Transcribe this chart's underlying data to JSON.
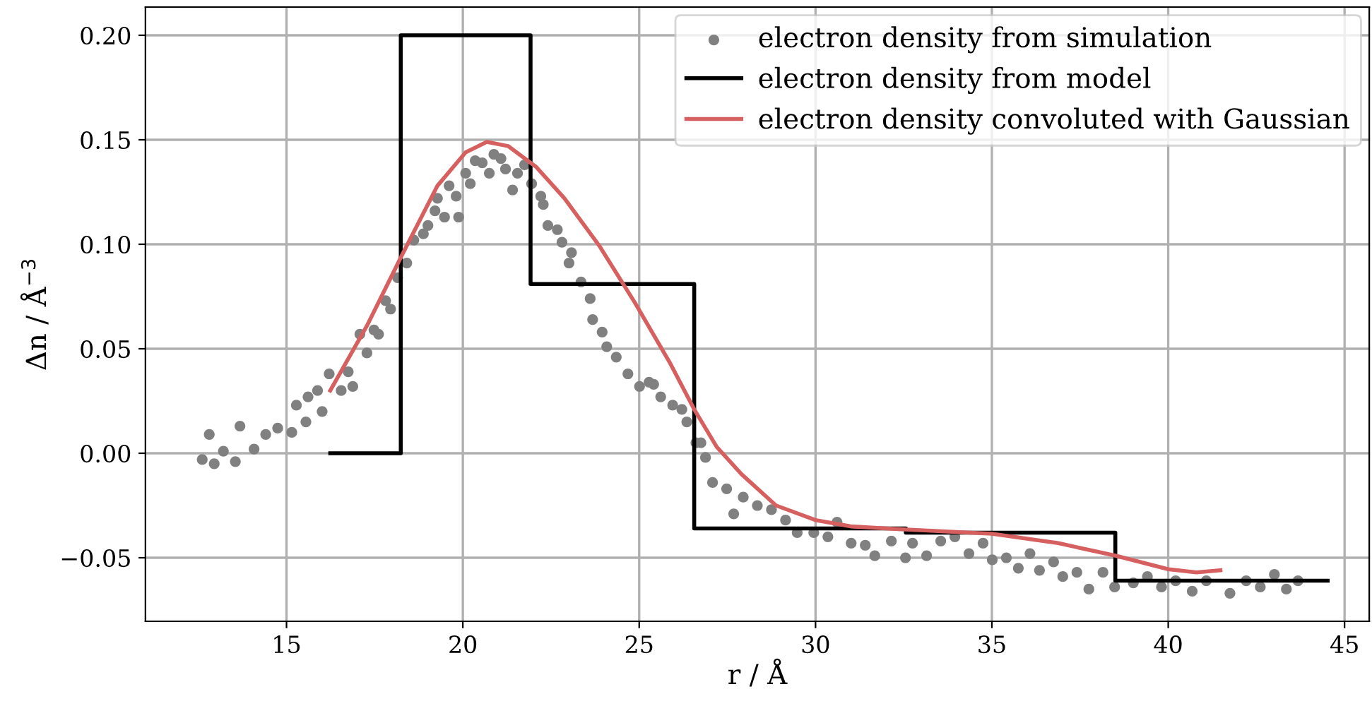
{
  "chart_data": {
    "type": "scatter",
    "xlabel": "r / Å",
    "ylabel": "Δn / Å$^{−3}$",
    "xlim": [
      11.0,
      45.7
    ],
    "ylim": [
      -0.0804,
      0.2135
    ],
    "xticks": [
      15,
      20,
      25,
      30,
      35,
      40,
      45
    ],
    "yticks": [
      {
        "value": -0.05,
        "label": "−0.05"
      },
      {
        "value": 0.0,
        "label": "0.00"
      },
      {
        "value": 0.05,
        "label": "0.05"
      },
      {
        "value": 0.1,
        "label": "0.10"
      },
      {
        "value": 0.15,
        "label": "0.15"
      },
      {
        "value": 0.2,
        "label": "0.20"
      }
    ],
    "grid": true,
    "legend": "top right",
    "series": [
      {
        "name": "electron density from simulation",
        "marker": "circle",
        "color": "#808080",
        "x": [
          12.61,
          12.81,
          12.95,
          13.21,
          13.55,
          13.68,
          14.08,
          14.41,
          14.75,
          15.15,
          15.28,
          15.55,
          15.61,
          15.88,
          16.01,
          16.21,
          16.55,
          16.75,
          16.88,
          17.08,
          17.28,
          17.48,
          17.61,
          17.81,
          17.95,
          18.15,
          18.41,
          18.61,
          18.88,
          19.01,
          19.21,
          19.28,
          19.48,
          19.61,
          19.81,
          19.88,
          20.08,
          20.21,
          20.35,
          20.55,
          20.75,
          20.88,
          21.08,
          21.21,
          21.41,
          21.55,
          21.75,
          21.95,
          22.21,
          22.28,
          22.41,
          22.68,
          22.81,
          23.01,
          23.08,
          23.35,
          23.61,
          23.68,
          23.95,
          24.08,
          24.35,
          24.68,
          25.01,
          25.28,
          25.41,
          25.61,
          25.95,
          26.21,
          26.35,
          26.61,
          26.75,
          26.88,
          27.08,
          27.48,
          27.68,
          27.95,
          28.35,
          28.75,
          29.15,
          29.48,
          29.95,
          30.35,
          30.61,
          31.01,
          31.41,
          31.68,
          32.15,
          32.55,
          32.75,
          33.15,
          33.55,
          33.95,
          34.35,
          34.75,
          35.01,
          35.41,
          35.75,
          36.08,
          36.35,
          36.75,
          37.01,
          37.41,
          37.75,
          38.15,
          38.48,
          39.01,
          39.41,
          39.81,
          40.21,
          40.68,
          41.08,
          41.75,
          42.21,
          42.61,
          43.01,
          43.35,
          43.68
        ],
        "values": [
          -0.003,
          0.009,
          -0.005,
          0.001,
          -0.004,
          0.013,
          0.002,
          0.009,
          0.012,
          0.01,
          0.023,
          0.015,
          0.027,
          0.03,
          0.02,
          0.038,
          0.03,
          0.039,
          0.032,
          0.057,
          0.048,
          0.059,
          0.057,
          0.073,
          0.069,
          0.084,
          0.091,
          0.102,
          0.105,
          0.109,
          0.116,
          0.122,
          0.113,
          0.128,
          0.123,
          0.113,
          0.134,
          0.129,
          0.14,
          0.139,
          0.134,
          0.143,
          0.141,
          0.136,
          0.126,
          0.134,
          0.138,
          0.129,
          0.123,
          0.119,
          0.109,
          0.107,
          0.101,
          0.091,
          0.096,
          0.082,
          0.074,
          0.064,
          0.058,
          0.051,
          0.046,
          0.038,
          0.032,
          0.034,
          0.033,
          0.027,
          0.023,
          0.021,
          0.015,
          0.005,
          0.005,
          -0.002,
          -0.014,
          -0.017,
          -0.029,
          -0.021,
          -0.025,
          -0.027,
          -0.032,
          -0.038,
          -0.038,
          -0.04,
          -0.033,
          -0.043,
          -0.044,
          -0.049,
          -0.042,
          -0.05,
          -0.043,
          -0.049,
          -0.042,
          -0.04,
          -0.048,
          -0.043,
          -0.051,
          -0.05,
          -0.055,
          -0.048,
          -0.056,
          -0.052,
          -0.059,
          -0.057,
          -0.065,
          -0.057,
          -0.064,
          -0.062,
          -0.059,
          -0.064,
          -0.061,
          -0.066,
          -0.061,
          -0.067,
          -0.061,
          -0.064,
          -0.058,
          -0.065,
          -0.061
        ]
      },
      {
        "name": "electron density from model",
        "type": "step",
        "color": "#000000",
        "x": [
          16.24,
          18.24,
          21.92,
          26.56,
          32.56,
          38.5,
          44.52
        ],
        "values": [
          0.0,
          0.2,
          0.081,
          -0.036,
          -0.038,
          -0.061,
          -0.061
        ]
      },
      {
        "name": "electron density convoluted with Gaussian",
        "type": "line",
        "color": "#d65f5f",
        "x": [
          16.24,
          17.28,
          18.28,
          19.28,
          20.08,
          20.68,
          21.28,
          22.08,
          22.88,
          23.88,
          24.88,
          25.88,
          26.56,
          27.2,
          27.9,
          28.88,
          30,
          31,
          32.56,
          35,
          36.88,
          38.5,
          40,
          40.8,
          41.48
        ],
        "values": [
          0.03,
          0.061,
          0.095,
          0.128,
          0.144,
          0.149,
          0.147,
          0.137,
          0.122,
          0.099,
          0.072,
          0.043,
          0.021,
          0.003,
          -0.01,
          -0.025,
          -0.032,
          -0.035,
          -0.0365,
          -0.0385,
          -0.043,
          -0.049,
          -0.0555,
          -0.057,
          -0.056
        ]
      }
    ]
  }
}
